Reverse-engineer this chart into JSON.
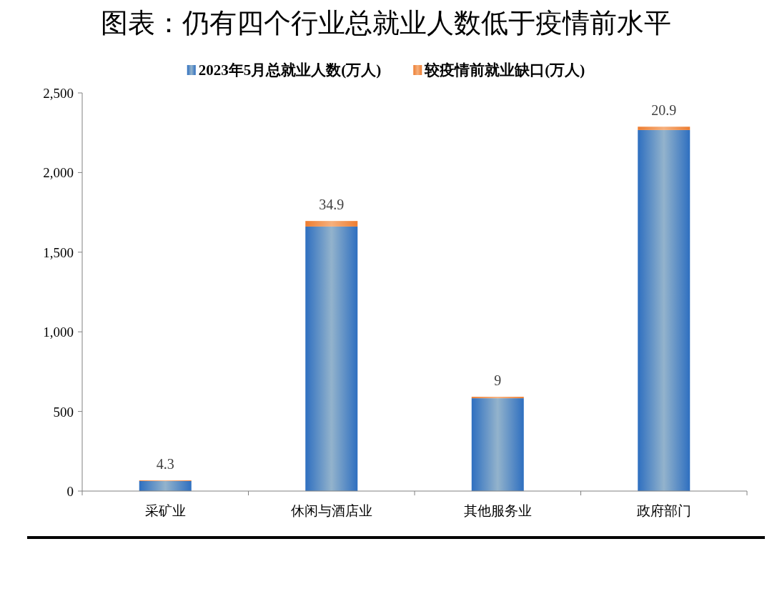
{
  "chart_data": {
    "type": "bar",
    "title": "图表：仍有四个行业总就业人数低于疫情前水平",
    "categories": [
      "采矿业",
      "休闲与酒店业",
      "其他服务业",
      "政府部门"
    ],
    "stacked": true,
    "series": [
      {
        "name": "2023年5月总就业人数(万人)",
        "color": "#2e6fc0",
        "values": [
          63,
          1661,
          583,
          2267
        ]
      },
      {
        "name": "较疫情前就业缺口(万人)",
        "color": "#ed7d31",
        "values": [
          4.3,
          34.9,
          9,
          20.9
        ],
        "value_labels": [
          "4.3",
          "34.9",
          "9",
          "20.9"
        ]
      }
    ],
    "ylim": [
      0,
      2500
    ],
    "yticks": [
      0,
      500,
      {
        "value": 1000,
        "label": "1,000"
      },
      {
        "value": 1500,
        "label": "1,500"
      },
      {
        "value": 2000,
        "label": "2,000"
      },
      {
        "value": 2500,
        "label": "2,500"
      }
    ],
    "legend": "top",
    "grid": false
  }
}
